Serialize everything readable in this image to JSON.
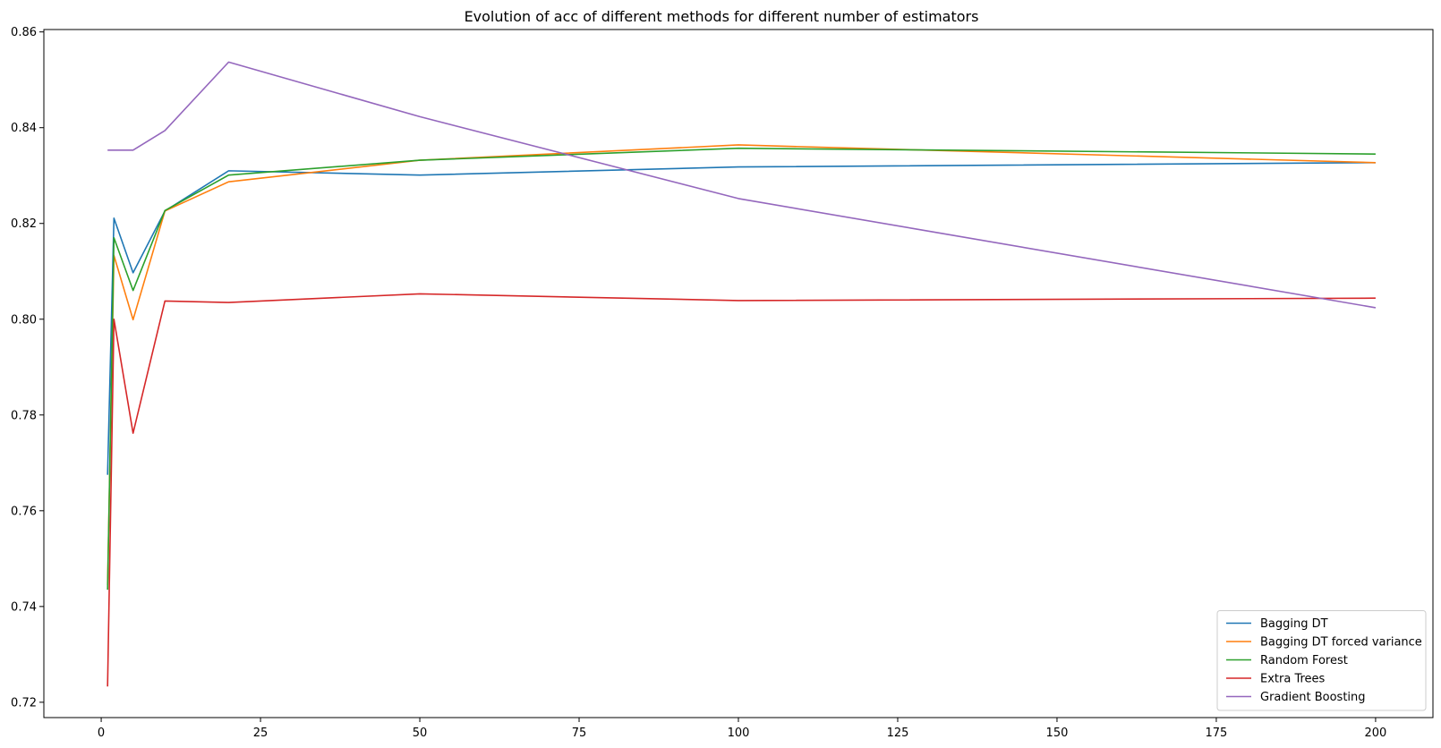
{
  "chart_data": {
    "type": "line",
    "title": "Evolution of acc of different methods for different number of estimators",
    "xlabel": "",
    "ylabel": "",
    "x": [
      1,
      2,
      5,
      10,
      20,
      50,
      100,
      200
    ],
    "xlim": [
      -9,
      209
    ],
    "ylim": [
      0.7168,
      0.8605
    ],
    "xticks": [
      0,
      25,
      50,
      75,
      100,
      125,
      150,
      175,
      200
    ],
    "yticks": [
      0.72,
      0.74,
      0.76,
      0.78,
      0.8,
      0.82,
      0.84,
      0.86
    ],
    "xtick_labels": [
      "0",
      "25",
      "50",
      "75",
      "100",
      "125",
      "150",
      "175",
      "200"
    ],
    "ytick_labels": [
      "0.72",
      "0.74",
      "0.76",
      "0.78",
      "0.80",
      "0.82",
      "0.84",
      "0.86"
    ],
    "grid": false,
    "legend_position": "bottom-right",
    "series": [
      {
        "name": "Bagging DT",
        "color": "#1f77b4",
        "values": [
          0.7675,
          0.8211,
          0.8097,
          0.8226,
          0.831,
          0.8301,
          0.8318,
          0.8327
        ]
      },
      {
        "name": "Bagging DT forced variance",
        "color": "#ff7f0e",
        "values": [
          0.7445,
          0.8133,
          0.7999,
          0.8226,
          0.8287,
          0.8332,
          0.8364,
          0.8327
        ]
      },
      {
        "name": "Random Forest",
        "color": "#2ca02c",
        "values": [
          0.7435,
          0.817,
          0.806,
          0.8227,
          0.8301,
          0.8332,
          0.8357,
          0.8345
        ]
      },
      {
        "name": "Extra Trees",
        "color": "#d62728",
        "values": [
          0.7233,
          0.8,
          0.7762,
          0.8038,
          0.8035,
          0.8053,
          0.8039,
          0.8044
        ]
      },
      {
        "name": "Gradient Boosting",
        "color": "#9467bd",
        "values": [
          0.8353,
          0.8353,
          0.8353,
          0.8394,
          0.8537,
          0.8423,
          0.8252,
          0.8024
        ]
      }
    ]
  }
}
